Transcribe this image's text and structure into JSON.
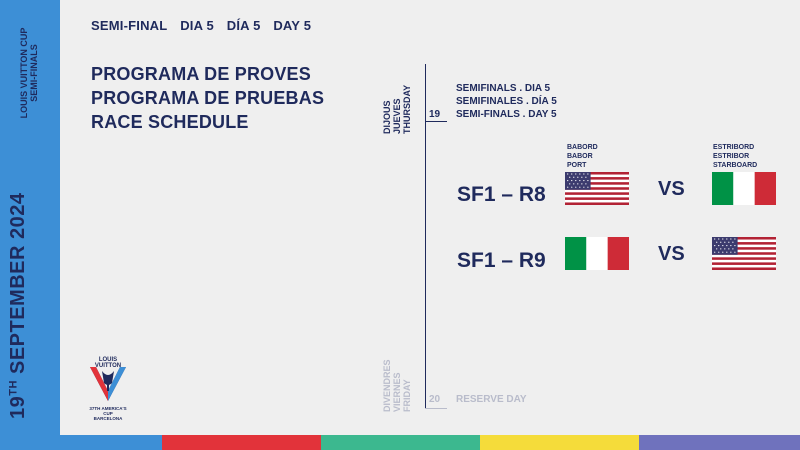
{
  "brand": {
    "line1": "LOUIS VUITTON CUP",
    "line2": "SEMI-FINALS",
    "date_day": "19",
    "date_suffix": "TH",
    "date_rest": "SEPTEMBER 2024"
  },
  "header": {
    "items": [
      "SEMI-FINAL",
      "DIA 5",
      "DÍA 5",
      "DAY 5"
    ]
  },
  "title": {
    "line1": "PROGRAMA DE PROVES",
    "line2": "PROGRAMA DE PRUEBAS",
    "line3": "RACE SCHEDULE"
  },
  "schedule": {
    "day1": {
      "name_ca": "DIJOUS",
      "name_es": "JUEVES",
      "name_en": "THURSDAY",
      "number": "19",
      "title_ca": "SEMIFINALS . DIA 5",
      "title_es": "SEMIFINALES . DÍA 5",
      "title_en": "SEMI-FINALS . DAY 5"
    },
    "day2": {
      "name_ca": "DIVENDRES",
      "name_es": "VIERNES",
      "name_en": "FRIDAY",
      "number": "20",
      "note": "RESERVE DAY"
    }
  },
  "sides": {
    "port_ca": "BABORD",
    "port_es": "BABOR",
    "port_en": "PORT",
    "starboard_ca": "ESTRIBORD",
    "starboard_es": "ESTRIBOR",
    "starboard_en": "STARBOARD"
  },
  "races": [
    {
      "label": "SF1 – R8",
      "vs": "VS",
      "port_flag": "usa-flag",
      "starboard_flag": "italy-flag"
    },
    {
      "label": "SF1 – R9",
      "vs": "VS",
      "port_flag": "italy-flag",
      "starboard_flag": "usa-flag"
    }
  ],
  "logo": {
    "top": "LOUIS VUITTON",
    "bottom1": "37TH AMERICA'S CUP",
    "bottom2": "BARCELONA"
  },
  "colors": {
    "navy": "#1f2a5c",
    "sidebar_blue": "#3d8fd6",
    "bar_blue": "#3d8fd6",
    "bar_red": "#e2333a",
    "bar_green": "#3cb88f",
    "bar_yellow": "#f5dc3a",
    "bar_purple": "#6f72bd"
  }
}
